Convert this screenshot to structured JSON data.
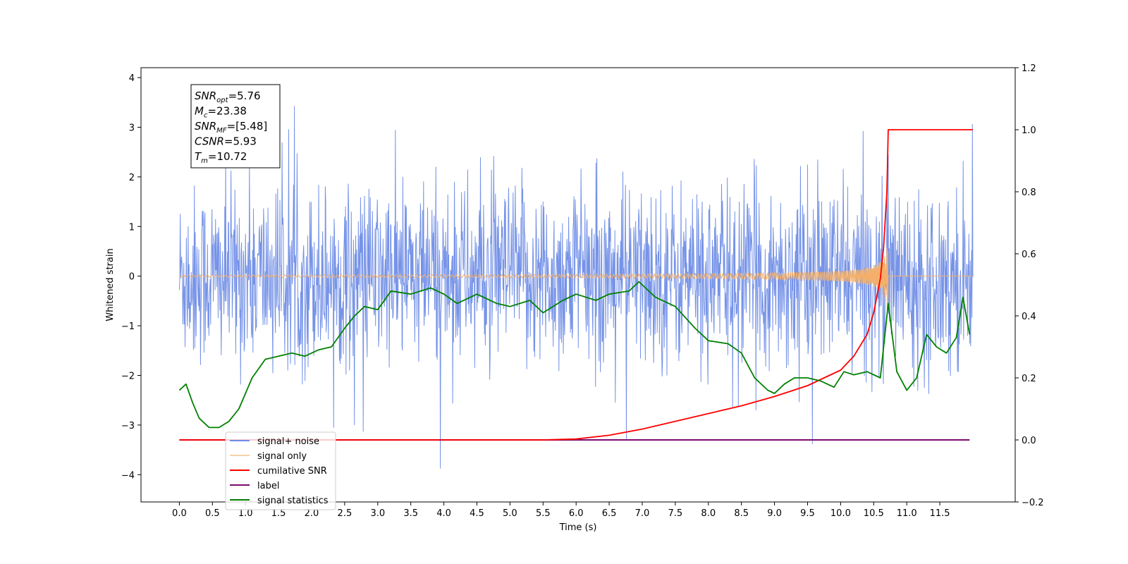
{
  "chart_data": {
    "type": "line",
    "xlabel": "Time (s)",
    "ylabel": "Whitened strain",
    "xlim": [
      -0.58,
      12.64
    ],
    "ylim": [
      -4.55,
      4.2
    ],
    "y2lim": [
      -0.2,
      1.2
    ],
    "xticks": [
      "0.0",
      "0.5",
      "1.0",
      "1.5",
      "2.0",
      "2.5",
      "3.0",
      "3.5",
      "4.0",
      "4.5",
      "5.0",
      "5.5",
      "6.0",
      "6.5",
      "7.0",
      "7.5",
      "8.0",
      "8.5",
      "9.0",
      "9.5",
      "10.0",
      "10.5",
      "11.0",
      "11.5"
    ],
    "yticks": [
      "4",
      "3",
      "2",
      "1",
      "0",
      "−1",
      "−2",
      "−3",
      "−4"
    ],
    "y2ticks": [
      "1.2",
      "1.0",
      "0.8",
      "0.6",
      "0.4",
      "0.2",
      "0.0",
      "−0.2"
    ],
    "grid": false,
    "legend_position": "lower-left",
    "annotation": {
      "lines": [
        {
          "sym": "SNR",
          "sub": "opt",
          "val": "=5.76"
        },
        {
          "sym": "M",
          "sub": "c",
          "val": "=23.38"
        },
        {
          "sym": "SNR",
          "sub": "MF",
          "val": "=[5.48]"
        },
        {
          "sym": "CSNR",
          "sub": "",
          "val": "=5.93"
        },
        {
          "sym": "T",
          "sub": "m",
          "val": "=10.72"
        }
      ]
    },
    "series": [
      {
        "name": "signal+ noise",
        "color": "#6f8de6",
        "axis": "left",
        "noise_std": 0.9,
        "x_range": [
          0.0,
          12.0
        ]
      },
      {
        "name": "signal only",
        "color": "#f4b06b",
        "axis": "left",
        "merger_time": 10.72,
        "peak_amplitude": 0.95
      },
      {
        "name": "cumilative SNR",
        "color": "#ff0000",
        "axis": "right",
        "x": [
          0.0,
          5.5,
          6.0,
          6.5,
          7.0,
          7.5,
          8.0,
          8.5,
          9.0,
          9.5,
          10.0,
          10.2,
          10.4,
          10.5,
          10.6,
          10.65,
          10.7,
          10.72,
          11.0,
          12.0
        ],
        "values": [
          0.0,
          0.0,
          0.003,
          0.015,
          0.035,
          0.06,
          0.085,
          0.11,
          0.14,
          0.175,
          0.225,
          0.27,
          0.34,
          0.41,
          0.52,
          0.62,
          0.8,
          1.0,
          1.0,
          1.0
        ]
      },
      {
        "name": "label",
        "color": "#7b0a6e",
        "axis": "right",
        "x": [
          0.0,
          11.95
        ],
        "values": [
          0.0,
          0.0
        ]
      },
      {
        "name": "signal statistics",
        "color": "#008000",
        "axis": "right",
        "x": [
          0.0,
          0.1,
          0.2,
          0.3,
          0.45,
          0.6,
          0.75,
          0.9,
          1.1,
          1.3,
          1.5,
          1.7,
          1.9,
          2.1,
          2.3,
          2.5,
          2.65,
          2.8,
          3.0,
          3.2,
          3.5,
          3.8,
          4.0,
          4.2,
          4.5,
          4.8,
          5.0,
          5.3,
          5.5,
          5.8,
          6.0,
          6.3,
          6.5,
          6.8,
          6.95,
          7.2,
          7.5,
          7.8,
          8.0,
          8.3,
          8.5,
          8.7,
          8.9,
          9.0,
          9.15,
          9.3,
          9.5,
          9.7,
          9.9,
          10.05,
          10.2,
          10.4,
          10.6,
          10.72,
          10.85,
          11.0,
          11.15,
          11.3,
          11.45,
          11.6,
          11.75,
          11.85,
          11.95
        ],
        "values": [
          0.16,
          0.18,
          0.12,
          0.07,
          0.04,
          0.04,
          0.06,
          0.1,
          0.2,
          0.26,
          0.27,
          0.28,
          0.27,
          0.29,
          0.3,
          0.36,
          0.4,
          0.43,
          0.42,
          0.48,
          0.47,
          0.49,
          0.47,
          0.44,
          0.47,
          0.44,
          0.43,
          0.45,
          0.41,
          0.45,
          0.47,
          0.45,
          0.47,
          0.48,
          0.51,
          0.46,
          0.43,
          0.36,
          0.32,
          0.31,
          0.28,
          0.2,
          0.16,
          0.15,
          0.18,
          0.2,
          0.2,
          0.19,
          0.17,
          0.22,
          0.21,
          0.22,
          0.2,
          0.44,
          0.22,
          0.16,
          0.2,
          0.34,
          0.3,
          0.28,
          0.33,
          0.46,
          0.34
        ]
      }
    ]
  }
}
